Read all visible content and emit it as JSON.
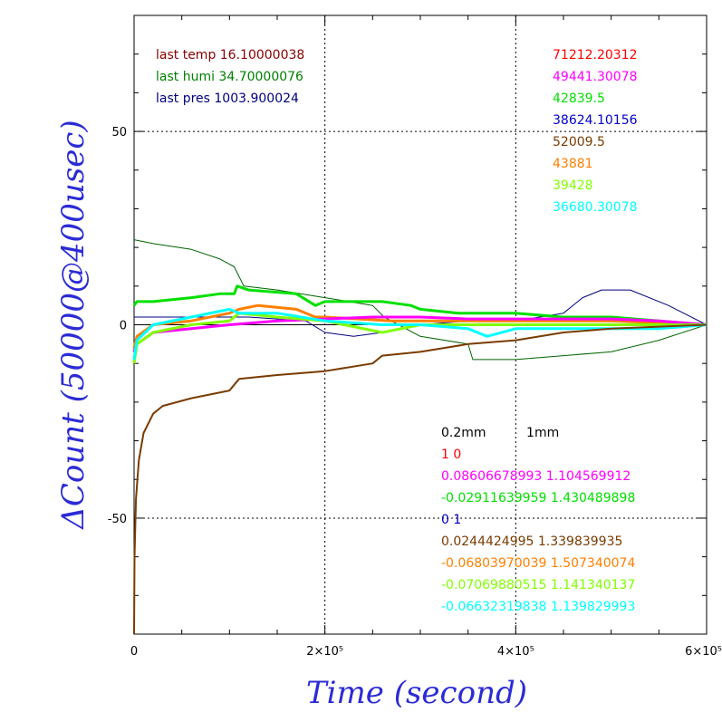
{
  "chart_data": {
    "type": "line",
    "xlabel": "Time (second)",
    "ylabel": "ΔCount (50000@400usec)",
    "xlim": [
      0,
      600000
    ],
    "ylim": [
      -80,
      80
    ],
    "x_ticks": [
      {
        "value": 0,
        "label": "0"
      },
      {
        "value": 200000,
        "label": "2×10⁵"
      },
      {
        "value": 400000,
        "label": "4×10⁵"
      },
      {
        "value": 600000,
        "label": "6×10⁵"
      }
    ],
    "y_ticks": [
      {
        "value": 50,
        "label": "50"
      },
      {
        "value": 0,
        "label": "0"
      },
      {
        "value": -50,
        "label": "-50"
      }
    ],
    "grid": true,
    "colors": {
      "darkred": "#8b0000",
      "green": "#008000",
      "navy": "#000080",
      "red": "#ff0000",
      "magenta": "#ff00ff",
      "lime": "#00e000",
      "blue": "#0000cc",
      "brown": "#7a3b00",
      "orange": "#ff7f00",
      "yellowgreen": "#80ff00",
      "cyan": "#00ffff",
      "axis_title": "#2b2bd6"
    },
    "series": [
      {
        "color": "#006400",
        "width": 1,
        "x": [
          0,
          20000,
          60000,
          90000,
          105000,
          115000,
          150000,
          200000,
          250000,
          262000,
          300000,
          350000,
          355000,
          380000,
          400000,
          450000,
          500000,
          550000,
          600000
        ],
        "y": [
          22,
          21,
          19.5,
          17,
          15,
          10,
          9,
          7,
          5,
          2,
          -3,
          -5,
          -9,
          -9,
          -9,
          -8,
          -7,
          -4,
          0
        ]
      },
      {
        "color": "#000080",
        "width": 1,
        "x": [
          0,
          60000,
          120000,
          180000,
          200000,
          230000,
          260000,
          300000,
          350000,
          400000,
          450000,
          470000,
          490000,
          520000,
          560000,
          600000
        ],
        "y": [
          2,
          2,
          2,
          1,
          -2,
          -3,
          -2,
          0,
          1,
          1,
          3,
          7,
          9,
          9,
          5,
          0
        ]
      },
      {
        "color": "#00e000",
        "width": 3,
        "x": [
          0,
          3000,
          20000,
          60000,
          90000,
          105000,
          108000,
          120000,
          170000,
          190000,
          200000,
          260000,
          290000,
          300000,
          340000,
          400000,
          450000,
          500000,
          550000,
          600000
        ],
        "y": [
          5,
          6,
          6,
          7,
          8,
          8,
          10,
          9,
          8,
          5,
          6,
          6,
          5,
          4,
          3,
          3,
          2,
          2,
          1,
          0
        ]
      },
      {
        "color": "#ff7f00",
        "width": 3,
        "x": [
          0,
          3000,
          20000,
          60000,
          100000,
          110000,
          130000,
          170000,
          190000,
          200000,
          270000,
          300000,
          340000,
          400000,
          450000,
          500000,
          550000,
          600000
        ],
        "y": [
          -6,
          -3,
          0,
          1,
          3,
          4,
          5,
          4,
          2,
          2,
          1,
          1,
          1,
          1,
          1,
          1,
          0.5,
          0
        ]
      },
      {
        "color": "#ff00ff",
        "width": 3,
        "x": [
          0,
          3000,
          20000,
          60000,
          100000,
          150000,
          200000,
          250000,
          300000,
          350000,
          400000,
          450000,
          500000,
          550000,
          600000
        ],
        "y": [
          -7,
          -5,
          -2,
          -1,
          0,
          1,
          1.5,
          2,
          2,
          1.5,
          1.5,
          1.5,
          1.5,
          1,
          0
        ]
      },
      {
        "color": "#80ff00",
        "width": 3,
        "x": [
          0,
          3000,
          20000,
          60000,
          100000,
          110000,
          150000,
          200000,
          260000,
          280000,
          300000,
          350000,
          400000,
          450000,
          500000,
          550000,
          600000
        ],
        "y": [
          -10,
          -5,
          -2,
          0,
          1,
          3,
          2,
          1,
          -2,
          -1,
          0,
          0,
          0,
          0,
          0,
          0,
          0
        ]
      },
      {
        "color": "#00ffff",
        "width": 3,
        "x": [
          0,
          3000,
          20000,
          60000,
          100000,
          110000,
          150000,
          200000,
          260000,
          300000,
          350000,
          370000,
          400000,
          450000,
          500000,
          550000,
          600000
        ],
        "y": [
          -9,
          -4,
          0,
          2,
          4,
          3,
          3,
          1,
          0,
          0,
          -1,
          -3,
          -1,
          -1,
          -1,
          -1,
          0
        ]
      },
      {
        "color": "#7a3b00",
        "width": 2,
        "x": [
          0,
          500,
          2000,
          5000,
          10000,
          20000,
          30000,
          60000,
          100000,
          110000,
          150000,
          200000,
          250000,
          260000,
          300000,
          350000,
          400000,
          450000,
          500000,
          550000,
          600000
        ],
        "y": [
          -80,
          -60,
          -45,
          -35,
          -28,
          -23,
          -21,
          -19,
          -17,
          -14,
          -13,
          -12,
          -10,
          -8,
          -7,
          -5,
          -4,
          -2,
          -1,
          -0.5,
          0
        ]
      }
    ]
  },
  "annotations_left": [
    {
      "text": "last temp 16.10000038",
      "color": "#8b0000"
    },
    {
      "text": "last humi 34.70000076",
      "color": "#008000"
    },
    {
      "text": "last pres 1003.900024",
      "color": "#000080"
    }
  ],
  "annotations_right": [
    {
      "text": "71212.20312",
      "color": "#ff0000"
    },
    {
      "text": "49441.30078",
      "color": "#ff00ff"
    },
    {
      "text": "42839.5",
      "color": "#00e000"
    },
    {
      "text": "38624.10156",
      "color": "#0000cc"
    },
    {
      "text": "52009.5",
      "color": "#7a3b00"
    },
    {
      "text": "43881",
      "color": "#ff7f00"
    },
    {
      "text": "39428",
      "color": "#80ff00"
    },
    {
      "text": "36680.30078",
      "color": "#00ffff"
    }
  ],
  "annotations_bottom": [
    {
      "text": "0.2mm          1mm",
      "color": "#000000"
    },
    {
      "text": "1 0",
      "color": "#ff0000"
    },
    {
      "text": "0.08606678993 1.104569912",
      "color": "#ff00ff"
    },
    {
      "text": "-0.02911639959 1.430489898",
      "color": "#00e000"
    },
    {
      "text": "0 1",
      "color": "#0000cc"
    },
    {
      "text": "0.0244424995 1.339839935",
      "color": "#7a3b00"
    },
    {
      "text": "-0.06803970039 1.507340074",
      "color": "#ff7f00"
    },
    {
      "text": "-0.07069880515 1.141340137",
      "color": "#80ff00"
    },
    {
      "text": "-0.06632319838 1.139829993",
      "color": "#00ffff"
    }
  ]
}
